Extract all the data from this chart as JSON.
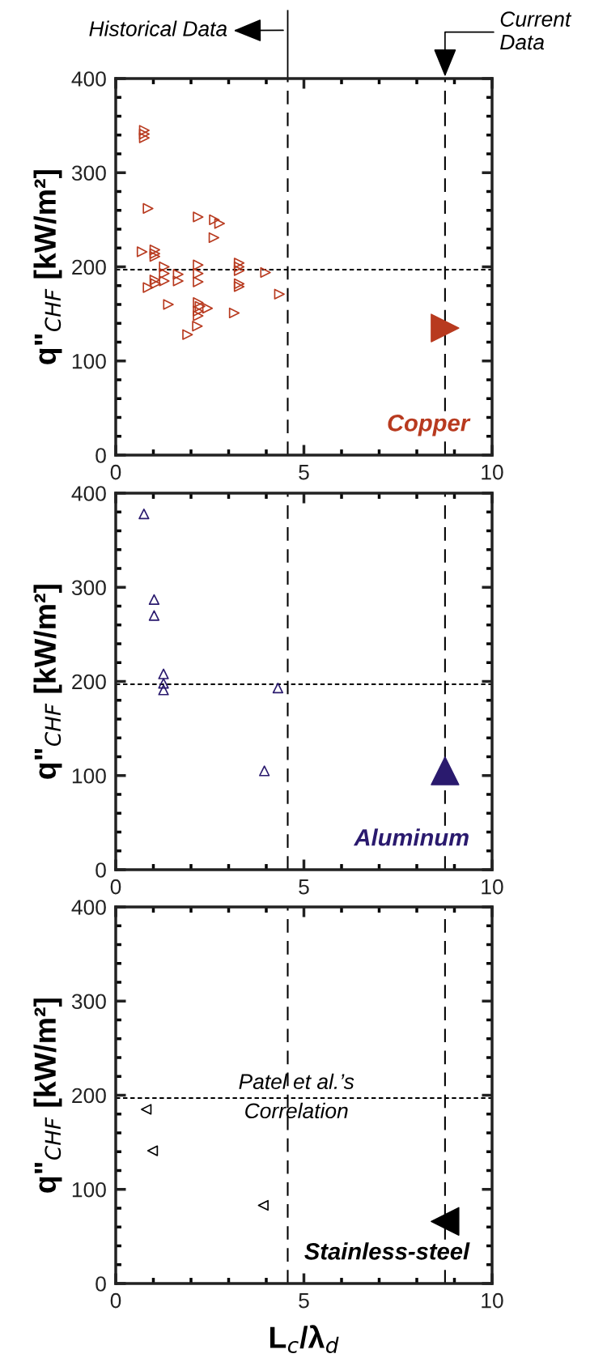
{
  "chart_data": [
    {
      "type": "scatter",
      "ylabel": "q\"$_{CHF}$ [kW/m²]",
      "xlim": [
        0,
        10
      ],
      "xticks": [
        0,
        5,
        10
      ],
      "ylim": [
        0,
        400
      ],
      "yticks": [
        0,
        100,
        200,
        300,
        400
      ],
      "marker": "triangle",
      "grid": false,
      "legend": false,
      "annotations": [
        "Historical Data",
        "Current Data",
        "Copper"
      ],
      "ref_lines": [
        {
          "axis": "x",
          "value": 4.57,
          "line_style": "dashed",
          "color": "#000000"
        },
        {
          "axis": "x",
          "value": 8.75,
          "line_style": "dashed",
          "color": "#000000"
        },
        {
          "axis": "y",
          "value": 197,
          "line_style": "dotted",
          "color": "#000000"
        }
      ],
      "series": [
        {
          "color": "#b83a1f",
          "x": [
            0.76,
            0.76,
            0.76,
            0.86,
            0.7,
            1.04,
            1.04,
            1.04,
            0.86,
            1.04,
            1.06,
            1.29,
            1.29,
            1.29,
            1.4,
            1.66,
            1.66,
            2.19,
            2.19,
            2.19,
            2.19,
            2.19,
            2.24,
            2.19,
            2.19,
            2.17,
            1.91,
            2.44,
            2.62,
            2.76,
            2.61,
            3.15,
            3.28,
            3.28,
            3.28,
            3.28,
            3.28,
            3.98,
            4.35
          ],
          "values": [
            345,
            341,
            337,
            262,
            216,
            218,
            214,
            211,
            178,
            186,
            182,
            200,
            193,
            185,
            160,
            192,
            185,
            253,
            202,
            193,
            184,
            162,
            158,
            153,
            148,
            137,
            128,
            156,
            250,
            246,
            231,
            151,
            204,
            200,
            196,
            182,
            179,
            194,
            171
          ]
        },
        {
          "color": "#b83a1f",
          "x": [
            8.75
          ],
          "values": [
            135
          ]
        }
      ]
    },
    {
      "type": "scatter",
      "ylabel": "q\"$_{CHF}$ [kW/m²]",
      "xlim": [
        0,
        10
      ],
      "xticks": [
        0,
        5,
        10
      ],
      "ylim": [
        0,
        400
      ],
      "yticks": [
        0,
        100,
        200,
        300,
        400
      ],
      "marker": "triangle",
      "grid": false,
      "legend": false,
      "annotations": [
        "Aluminum"
      ],
      "ref_lines": [
        {
          "axis": "x",
          "value": 4.57,
          "line_style": "dashed",
          "color": "#000000"
        },
        {
          "axis": "x",
          "value": 8.75,
          "line_style": "dashed",
          "color": "#000000"
        },
        {
          "axis": "y",
          "value": 197,
          "line_style": "dotted",
          "color": "#000000"
        }
      ],
      "series": [
        {
          "color": "#2a1a6e",
          "x": [
            0.75,
            1.02,
            1.02,
            1.27,
            1.27,
            1.27,
            3.95,
            4.31
          ],
          "values": [
            378,
            287,
            270,
            208,
            198,
            191,
            105,
            193
          ]
        },
        {
          "color": "#2a1a6e",
          "x": [
            8.75
          ],
          "values": [
            105
          ]
        }
      ]
    },
    {
      "type": "scatter",
      "ylabel": "q\"$_{CHF}$ [kW/m²]",
      "xlabel": "L$_{c}$/λ$_{d}$",
      "xlim": [
        0,
        10
      ],
      "xticks": [
        0,
        5,
        10
      ],
      "ylim": [
        0,
        400
      ],
      "yticks": [
        0,
        100,
        200,
        300,
        400
      ],
      "marker": "triangle",
      "grid": false,
      "legend": false,
      "annotations": [
        {
          "text": "Patel et al.’s\nCorrelation",
          "x": 4.8,
          "y": 197
        },
        "Stainless-steel"
      ],
      "ref_lines": [
        {
          "axis": "x",
          "value": 4.57,
          "line_style": "dashed",
          "color": "#000000"
        },
        {
          "axis": "x",
          "value": 8.75,
          "line_style": "dashed",
          "color": "#000000"
        },
        {
          "axis": "y",
          "value": 197,
          "line_style": "dotted",
          "color": "#000000"
        }
      ],
      "series": [
        {
          "color": "#000000",
          "x": [
            0.81,
            0.98,
            3.92
          ],
          "values": [
            185,
            141,
            83
          ]
        },
        {
          "color": "#000000",
          "x": [
            8.75
          ],
          "values": [
            66
          ]
        }
      ]
    }
  ]
}
